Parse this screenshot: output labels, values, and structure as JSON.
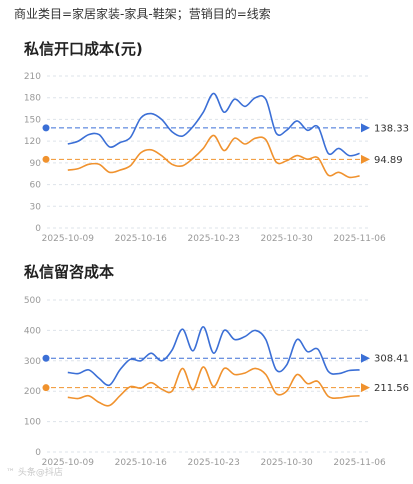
{
  "header": {
    "filter_text": "商业类目=家居家装-家具-鞋架；营销目的=线索"
  },
  "watermark": "™ 头条@抖店",
  "colors": {
    "blue": "#3b6fd6",
    "orange": "#f0922e",
    "grid": "#dde3ea"
  },
  "chart_data": [
    {
      "type": "line",
      "title": "私信开口成本(元)",
      "ylim": [
        0,
        210
      ],
      "yticks": [
        0,
        30,
        60,
        90,
        120,
        150,
        180,
        210
      ],
      "x_tick_labels": [
        "2025-10-09",
        "2025-10-16",
        "2025-10-23",
        "2025-10-30",
        "2025-11-06"
      ],
      "x_start": "2025-10-07",
      "x_end": "2025-11-07",
      "series": [
        {
          "color": "#3b6fd6",
          "avg": 138.33,
          "avg_label": "138.33",
          "x": [
            "2025-10-09",
            "2025-10-10",
            "2025-10-11",
            "2025-10-12",
            "2025-10-13",
            "2025-10-14",
            "2025-10-15",
            "2025-10-16",
            "2025-10-17",
            "2025-10-18",
            "2025-10-19",
            "2025-10-20",
            "2025-10-21",
            "2025-10-22",
            "2025-10-23",
            "2025-10-24",
            "2025-10-25",
            "2025-10-26",
            "2025-10-27",
            "2025-10-28",
            "2025-10-29",
            "2025-10-30",
            "2025-10-31",
            "2025-11-01",
            "2025-11-02",
            "2025-11-03",
            "2025-11-04",
            "2025-11-05",
            "2025-11-06"
          ],
          "values": [
            116,
            120,
            129,
            129,
            112,
            118,
            125,
            152,
            158,
            150,
            133,
            127,
            140,
            160,
            186,
            160,
            178,
            168,
            180,
            178,
            131,
            135,
            148,
            135,
            140,
            103,
            110,
            100,
            103
          ]
        },
        {
          "color": "#f0922e",
          "avg": 94.89,
          "avg_label": "94.89",
          "x": [
            "2025-10-09",
            "2025-10-10",
            "2025-10-11",
            "2025-10-12",
            "2025-10-13",
            "2025-10-14",
            "2025-10-15",
            "2025-10-16",
            "2025-10-17",
            "2025-10-18",
            "2025-10-19",
            "2025-10-20",
            "2025-10-21",
            "2025-10-22",
            "2025-10-23",
            "2025-10-24",
            "2025-10-25",
            "2025-10-26",
            "2025-10-27",
            "2025-10-28",
            "2025-10-29",
            "2025-10-30",
            "2025-10-31",
            "2025-11-01",
            "2025-11-02",
            "2025-11-03",
            "2025-11-04",
            "2025-11-05",
            "2025-11-06"
          ],
          "values": [
            80,
            82,
            88,
            88,
            77,
            80,
            86,
            104,
            108,
            100,
            88,
            86,
            96,
            110,
            128,
            107,
            124,
            116,
            124,
            122,
            91,
            93,
            100,
            95,
            97,
            73,
            77,
            70,
            72
          ]
        }
      ]
    },
    {
      "type": "line",
      "title": "私信留咨成本",
      "ylim": [
        0,
        500
      ],
      "yticks": [
        0,
        100,
        200,
        300,
        400,
        500
      ],
      "x_tick_labels": [
        "2025-10-09",
        "2025-10-16",
        "2025-10-23",
        "2025-10-30",
        "2025-11-06"
      ],
      "x_start": "2025-10-07",
      "x_end": "2025-11-07",
      "series": [
        {
          "color": "#3b6fd6",
          "avg": 308.41,
          "avg_label": "308.41",
          "x": [
            "2025-10-09",
            "2025-10-10",
            "2025-10-11",
            "2025-10-12",
            "2025-10-13",
            "2025-10-14",
            "2025-10-15",
            "2025-10-16",
            "2025-10-17",
            "2025-10-18",
            "2025-10-19",
            "2025-10-20",
            "2025-10-21",
            "2025-10-22",
            "2025-10-23",
            "2025-10-24",
            "2025-10-25",
            "2025-10-26",
            "2025-10-27",
            "2025-10-28",
            "2025-10-29",
            "2025-10-30",
            "2025-10-31",
            "2025-11-01",
            "2025-11-02",
            "2025-11-03",
            "2025-11-04",
            "2025-11-05",
            "2025-11-06"
          ],
          "values": [
            262,
            258,
            270,
            242,
            220,
            270,
            305,
            300,
            325,
            300,
            335,
            404,
            333,
            412,
            325,
            400,
            370,
            380,
            400,
            370,
            270,
            286,
            370,
            330,
            338,
            265,
            258,
            268,
            270
          ]
        },
        {
          "color": "#f0922e",
          "avg": 211.56,
          "avg_label": "211.56",
          "x": [
            "2025-10-09",
            "2025-10-10",
            "2025-10-11",
            "2025-10-12",
            "2025-10-13",
            "2025-10-14",
            "2025-10-15",
            "2025-10-16",
            "2025-10-17",
            "2025-10-18",
            "2025-10-19",
            "2025-10-20",
            "2025-10-21",
            "2025-10-22",
            "2025-10-23",
            "2025-10-24",
            "2025-10-25",
            "2025-10-26",
            "2025-10-27",
            "2025-10-28",
            "2025-10-29",
            "2025-10-30",
            "2025-10-31",
            "2025-11-01",
            "2025-11-02",
            "2025-11-03",
            "2025-11-04",
            "2025-11-05",
            "2025-11-06"
          ],
          "values": [
            180,
            176,
            185,
            163,
            153,
            185,
            215,
            210,
            228,
            207,
            200,
            275,
            205,
            280,
            215,
            275,
            255,
            260,
            275,
            255,
            192,
            200,
            255,
            225,
            232,
            183,
            178,
            183,
            185
          ]
        }
      ]
    }
  ]
}
